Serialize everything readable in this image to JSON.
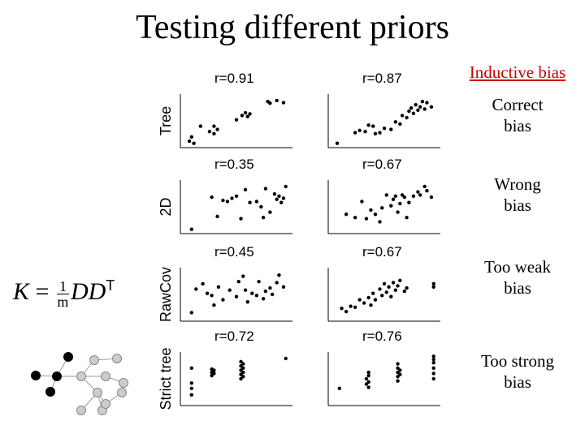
{
  "title": "Testing different priors",
  "bias_labels": {
    "header": "Inductive bias",
    "row0": [
      "Correct",
      "bias"
    ],
    "row1": [
      "Wrong",
      "bias"
    ],
    "row2": [
      "Too weak",
      "bias"
    ],
    "row3": [
      "Too strong",
      "bias"
    ]
  },
  "formula": {
    "lhs": "K",
    "eq": "=",
    "num": "1",
    "den": "m",
    "rhs": "DD",
    "sup": "T"
  },
  "chart_data": {
    "type": "scatter",
    "rows": [
      "Tree",
      "2D",
      "RawCov",
      "Strict tree"
    ],
    "panels": [
      {
        "row": 0,
        "col": 0,
        "label": "r=0.91",
        "points": [
          [
            0.08,
            0.12
          ],
          [
            0.1,
            0.2
          ],
          [
            0.12,
            0.08
          ],
          [
            0.18,
            0.4
          ],
          [
            0.26,
            0.3
          ],
          [
            0.3,
            0.26
          ],
          [
            0.33,
            0.34
          ],
          [
            0.3,
            0.4
          ],
          [
            0.5,
            0.52
          ],
          [
            0.55,
            0.6
          ],
          [
            0.58,
            0.65
          ],
          [
            0.6,
            0.58
          ],
          [
            0.62,
            0.63
          ],
          [
            0.78,
            0.86
          ],
          [
            0.8,
            0.83
          ],
          [
            0.86,
            0.88
          ],
          [
            0.92,
            0.84
          ]
        ]
      },
      {
        "row": 0,
        "col": 1,
        "label": "r=0.87",
        "points": [
          [
            0.08,
            0.08
          ],
          [
            0.24,
            0.28
          ],
          [
            0.28,
            0.32
          ],
          [
            0.33,
            0.3
          ],
          [
            0.36,
            0.42
          ],
          [
            0.4,
            0.4
          ],
          [
            0.42,
            0.26
          ],
          [
            0.46,
            0.28
          ],
          [
            0.5,
            0.36
          ],
          [
            0.56,
            0.34
          ],
          [
            0.6,
            0.48
          ],
          [
            0.64,
            0.44
          ],
          [
            0.66,
            0.6
          ],
          [
            0.7,
            0.56
          ],
          [
            0.72,
            0.68
          ],
          [
            0.74,
            0.74
          ],
          [
            0.76,
            0.64
          ],
          [
            0.78,
            0.8
          ],
          [
            0.8,
            0.7
          ],
          [
            0.82,
            0.76
          ],
          [
            0.84,
            0.86
          ],
          [
            0.86,
            0.72
          ],
          [
            0.88,
            0.84
          ],
          [
            0.92,
            0.76
          ]
        ]
      },
      {
        "row": 1,
        "col": 0,
        "label": "r=0.35",
        "points": [
          [
            0.1,
            0.08
          ],
          [
            0.28,
            0.68
          ],
          [
            0.33,
            0.32
          ],
          [
            0.38,
            0.62
          ],
          [
            0.42,
            0.6
          ],
          [
            0.46,
            0.66
          ],
          [
            0.5,
            0.7
          ],
          [
            0.54,
            0.28
          ],
          [
            0.58,
            0.82
          ],
          [
            0.62,
            0.58
          ],
          [
            0.68,
            0.6
          ],
          [
            0.72,
            0.5
          ],
          [
            0.74,
            0.3
          ],
          [
            0.76,
            0.84
          ],
          [
            0.8,
            0.4
          ],
          [
            0.84,
            0.74
          ],
          [
            0.86,
            0.64
          ],
          [
            0.88,
            0.7
          ],
          [
            0.9,
            0.58
          ],
          [
            0.92,
            0.66
          ],
          [
            0.94,
            0.88
          ]
        ]
      },
      {
        "row": 1,
        "col": 1,
        "label": "r=0.67",
        "points": [
          [
            0.16,
            0.36
          ],
          [
            0.24,
            0.3
          ],
          [
            0.3,
            0.6
          ],
          [
            0.34,
            0.28
          ],
          [
            0.38,
            0.44
          ],
          [
            0.42,
            0.36
          ],
          [
            0.46,
            0.22
          ],
          [
            0.48,
            0.48
          ],
          [
            0.52,
            0.72
          ],
          [
            0.56,
            0.52
          ],
          [
            0.58,
            0.64
          ],
          [
            0.6,
            0.7
          ],
          [
            0.62,
            0.4
          ],
          [
            0.64,
            0.56
          ],
          [
            0.66,
            0.72
          ],
          [
            0.68,
            0.68
          ],
          [
            0.7,
            0.3
          ],
          [
            0.72,
            0.58
          ],
          [
            0.76,
            0.7
          ],
          [
            0.8,
            0.78
          ],
          [
            0.82,
            0.72
          ],
          [
            0.86,
            0.88
          ],
          [
            0.88,
            0.8
          ],
          [
            0.92,
            0.68
          ]
        ]
      },
      {
        "row": 2,
        "col": 0,
        "label": "r=0.45",
        "points": [
          [
            0.1,
            0.16
          ],
          [
            0.14,
            0.6
          ],
          [
            0.2,
            0.7
          ],
          [
            0.24,
            0.52
          ],
          [
            0.28,
            0.48
          ],
          [
            0.3,
            0.3
          ],
          [
            0.34,
            0.64
          ],
          [
            0.38,
            0.4
          ],
          [
            0.44,
            0.58
          ],
          [
            0.5,
            0.46
          ],
          [
            0.52,
            0.74
          ],
          [
            0.56,
            0.84
          ],
          [
            0.58,
            0.58
          ],
          [
            0.6,
            0.36
          ],
          [
            0.64,
            0.52
          ],
          [
            0.68,
            0.48
          ],
          [
            0.7,
            0.74
          ],
          [
            0.74,
            0.42
          ],
          [
            0.76,
            0.56
          ],
          [
            0.8,
            0.62
          ],
          [
            0.82,
            0.5
          ],
          [
            0.86,
            0.72
          ],
          [
            0.88,
            0.86
          ],
          [
            0.92,
            0.64
          ]
        ]
      },
      {
        "row": 2,
        "col": 1,
        "label": "r=0.67",
        "points": [
          [
            0.12,
            0.24
          ],
          [
            0.16,
            0.18
          ],
          [
            0.2,
            0.28
          ],
          [
            0.24,
            0.26
          ],
          [
            0.28,
            0.4
          ],
          [
            0.32,
            0.34
          ],
          [
            0.36,
            0.44
          ],
          [
            0.38,
            0.3
          ],
          [
            0.4,
            0.52
          ],
          [
            0.42,
            0.4
          ],
          [
            0.46,
            0.6
          ],
          [
            0.48,
            0.48
          ],
          [
            0.5,
            0.7
          ],
          [
            0.52,
            0.54
          ],
          [
            0.54,
            0.64
          ],
          [
            0.56,
            0.46
          ],
          [
            0.58,
            0.72
          ],
          [
            0.6,
            0.58
          ],
          [
            0.62,
            0.66
          ],
          [
            0.64,
            0.76
          ],
          [
            0.68,
            0.56
          ],
          [
            0.7,
            0.62
          ],
          [
            0.94,
            0.64
          ],
          [
            0.94,
            0.7
          ]
        ]
      },
      {
        "row": 3,
        "col": 0,
        "label": "r=0.72",
        "points": [
          [
            0.1,
            0.2
          ],
          [
            0.1,
            0.32
          ],
          [
            0.1,
            0.42
          ],
          [
            0.1,
            0.7
          ],
          [
            0.28,
            0.56
          ],
          [
            0.28,
            0.62
          ],
          [
            0.28,
            0.68
          ],
          [
            0.3,
            0.6
          ],
          [
            0.3,
            0.66
          ],
          [
            0.54,
            0.5
          ],
          [
            0.54,
            0.58
          ],
          [
            0.54,
            0.66
          ],
          [
            0.54,
            0.74
          ],
          [
            0.54,
            0.82
          ],
          [
            0.56,
            0.54
          ],
          [
            0.56,
            0.62
          ],
          [
            0.56,
            0.7
          ],
          [
            0.56,
            0.78
          ],
          [
            0.94,
            0.88
          ]
        ]
      },
      {
        "row": 3,
        "col": 1,
        "label": "r=0.76",
        "points": [
          [
            0.1,
            0.32
          ],
          [
            0.34,
            0.4
          ],
          [
            0.34,
            0.5
          ],
          [
            0.36,
            0.34
          ],
          [
            0.36,
            0.44
          ],
          [
            0.36,
            0.56
          ],
          [
            0.36,
            0.62
          ],
          [
            0.62,
            0.46
          ],
          [
            0.62,
            0.54
          ],
          [
            0.62,
            0.62
          ],
          [
            0.62,
            0.7
          ],
          [
            0.62,
            0.78
          ],
          [
            0.64,
            0.58
          ],
          [
            0.64,
            0.66
          ],
          [
            0.94,
            0.5
          ],
          [
            0.94,
            0.6
          ],
          [
            0.94,
            0.7
          ],
          [
            0.94,
            0.8
          ],
          [
            0.94,
            0.86
          ],
          [
            0.94,
            0.92
          ]
        ]
      }
    ]
  },
  "tree_diagram": {
    "black_nodes": 5,
    "grey_nodes": 10,
    "colors": {
      "black": "#000000",
      "grey": "#cccccc",
      "grey_stroke": "#888888",
      "edge": "#999999"
    }
  }
}
